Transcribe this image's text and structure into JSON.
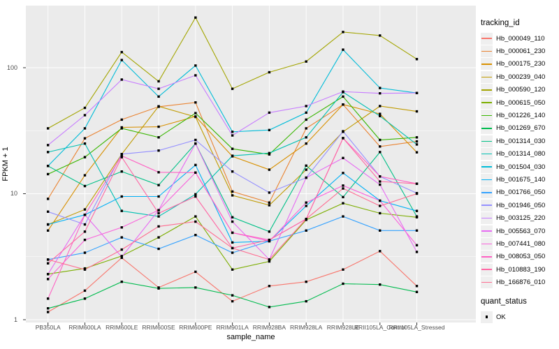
{
  "figure": {
    "y_axis_title": "FPKM + 1",
    "x_axis_title": "sample_name",
    "legend_title": "tracking_id",
    "legend2_title": "quant_status",
    "legend2_items": [
      {
        "label": "OK"
      }
    ]
  },
  "style": {
    "panel_bg": "#EBEBEB",
    "grid_color": "#FFFFFF",
    "tick_color": "#333333",
    "tick_label_color": "#4D4D4D",
    "point_color": "#000000"
  },
  "chart_data": {
    "type": "line",
    "yscale": "log10",
    "ylim": [
      1,
      312
    ],
    "y_major_ticks": [
      1,
      10,
      100
    ],
    "y_tick_labels": [
      "1",
      "10",
      "100"
    ],
    "y_minor_ticks": [
      3.1623,
      31.623
    ],
    "xlabel": "sample_name",
    "ylabel": "FPKM + 1",
    "grid": true,
    "legend_position": "right",
    "point_marker": {
      "shape": "filled-square",
      "color": "#000000",
      "legend_group": "quant_status",
      "label": "OK"
    },
    "x_categories": [
      "PB350LA",
      "RRIM600LA",
      "RRIM600LE",
      "RRIM600SE",
      "RRIM600PE",
      "RRIM901LA",
      "RRIM928BA",
      "RRIM928LA",
      "RRIM928LE",
      "RRII105LA_Control",
      "RRII105LA_Stressed"
    ],
    "series": [
      {
        "name": "Hb_000049_110",
        "color": "#F8766D",
        "values": [
          1.15,
          1.7,
          3.1,
          1.8,
          2.4,
          1.4,
          1.85,
          2.0,
          2.5,
          3.5,
          1.85
        ]
      },
      {
        "name": "Hb_000061_230",
        "color": "#EA8331",
        "values": [
          9.1,
          27.5,
          38.7,
          49.0,
          53.0,
          10.4,
          8.5,
          33.0,
          51.0,
          23.7,
          26.0
        ]
      },
      {
        "name": "Hb_000175_230",
        "color": "#D89000",
        "values": [
          5.1,
          14.0,
          33.6,
          34.0,
          41.0,
          19.8,
          15.5,
          25.0,
          51.0,
          43.0,
          21.3
        ]
      },
      {
        "name": "Hb_000239_040",
        "color": "#C09B00",
        "values": [
          5.7,
          7.5,
          20.6,
          49.4,
          40.7,
          9.7,
          8.1,
          15.5,
          31.0,
          49.6,
          45.0
        ]
      },
      {
        "name": "Hb_000590_120",
        "color": "#A3A500",
        "values": [
          33.0,
          48.0,
          133.0,
          78.0,
          250.0,
          68.0,
          92.0,
          112.0,
          192.0,
          180.0,
          117.0
        ]
      },
      {
        "name": "Hb_000615_050",
        "color": "#7CAE00",
        "values": [
          2.3,
          2.55,
          3.2,
          4.5,
          6.6,
          2.5,
          2.9,
          6.2,
          8.4,
          7.0,
          6.5
        ]
      },
      {
        "name": "Hb_001226_140",
        "color": "#39B600",
        "values": [
          14.3,
          19.5,
          33.0,
          28.0,
          43.6,
          22.7,
          20.5,
          38.7,
          59.0,
          26.7,
          28.0
        ]
      },
      {
        "name": "Hb_001269_670",
        "color": "#00BB4E",
        "values": [
          1.23,
          1.47,
          2.0,
          1.77,
          1.8,
          1.56,
          1.26,
          1.4,
          1.93,
          1.9,
          1.66
        ]
      },
      {
        "name": "Hb_001314_030",
        "color": "#00C087",
        "values": [
          16.6,
          11.5,
          15.0,
          11.7,
          25.0,
          6.5,
          5.0,
          16.7,
          9.4,
          21.4,
          6.6
        ]
      },
      {
        "name": "Hb_001314_080",
        "color": "#00C0B2",
        "values": [
          21.4,
          25.0,
          7.3,
          6.6,
          9.9,
          20.0,
          21.0,
          28.0,
          64.0,
          41.3,
          24.6
        ]
      },
      {
        "name": "Hb_001504_030",
        "color": "#00BCD8",
        "values": [
          16.6,
          33.0,
          115.0,
          59.0,
          104.0,
          31.0,
          32.0,
          44.0,
          139.0,
          69.0,
          63.0
        ]
      },
      {
        "name": "Hb_001675_140",
        "color": "#00B0F6",
        "values": [
          5.7,
          6.8,
          9.5,
          9.5,
          16.9,
          4.1,
          4.2,
          8.0,
          14.6,
          8.8,
          7.3
        ]
      },
      {
        "name": "Hb_001766_050",
        "color": "#35A2FF",
        "values": [
          3.0,
          3.4,
          4.5,
          3.65,
          4.7,
          3.4,
          4.2,
          5.1,
          6.6,
          5.1,
          5.1
        ]
      },
      {
        "name": "Hb_001946_050",
        "color": "#9590FF",
        "values": [
          7.2,
          5.7,
          20.6,
          22.0,
          26.7,
          15.0,
          10.2,
          13.4,
          31.3,
          13.7,
          10.1
        ]
      },
      {
        "name": "Hb_003125_220",
        "color": "#C77CFF",
        "values": [
          24.3,
          42.0,
          80.5,
          68.0,
          87.0,
          29.0,
          44.0,
          49.6,
          64.6,
          62.6,
          63.0
        ]
      },
      {
        "name": "Hb_005563_070",
        "color": "#E76BF3",
        "values": [
          2.3,
          6.8,
          3.15,
          7.4,
          25.0,
          6.0,
          3.0,
          13.4,
          19.2,
          11.8,
          3.45
        ]
      },
      {
        "name": "Hb_007441_080",
        "color": "#FA62DB",
        "values": [
          2.1,
          4.3,
          5.4,
          7.4,
          14.7,
          4.9,
          4.2,
          8.5,
          11.6,
          8.8,
          3.9
        ]
      },
      {
        "name": "Hb_008053_050",
        "color": "#FF61C3",
        "values": [
          1.47,
          6.8,
          20.0,
          14.8,
          14.7,
          4.9,
          4.3,
          6.3,
          27.6,
          13.7,
          12.0
        ]
      },
      {
        "name": "Hb_010883_190",
        "color": "#FF67A4",
        "values": [
          2.8,
          5.0,
          19.5,
          7.0,
          9.5,
          3.7,
          4.3,
          6.3,
          27.6,
          12.5,
          12.0
        ]
      },
      {
        "name": "Hb_166876_010",
        "color": "#FF6C91",
        "values": [
          3.0,
          2.5,
          3.6,
          5.5,
          6.0,
          3.7,
          3.0,
          6.3,
          11.0,
          8.0,
          10.0
        ]
      }
    ]
  }
}
